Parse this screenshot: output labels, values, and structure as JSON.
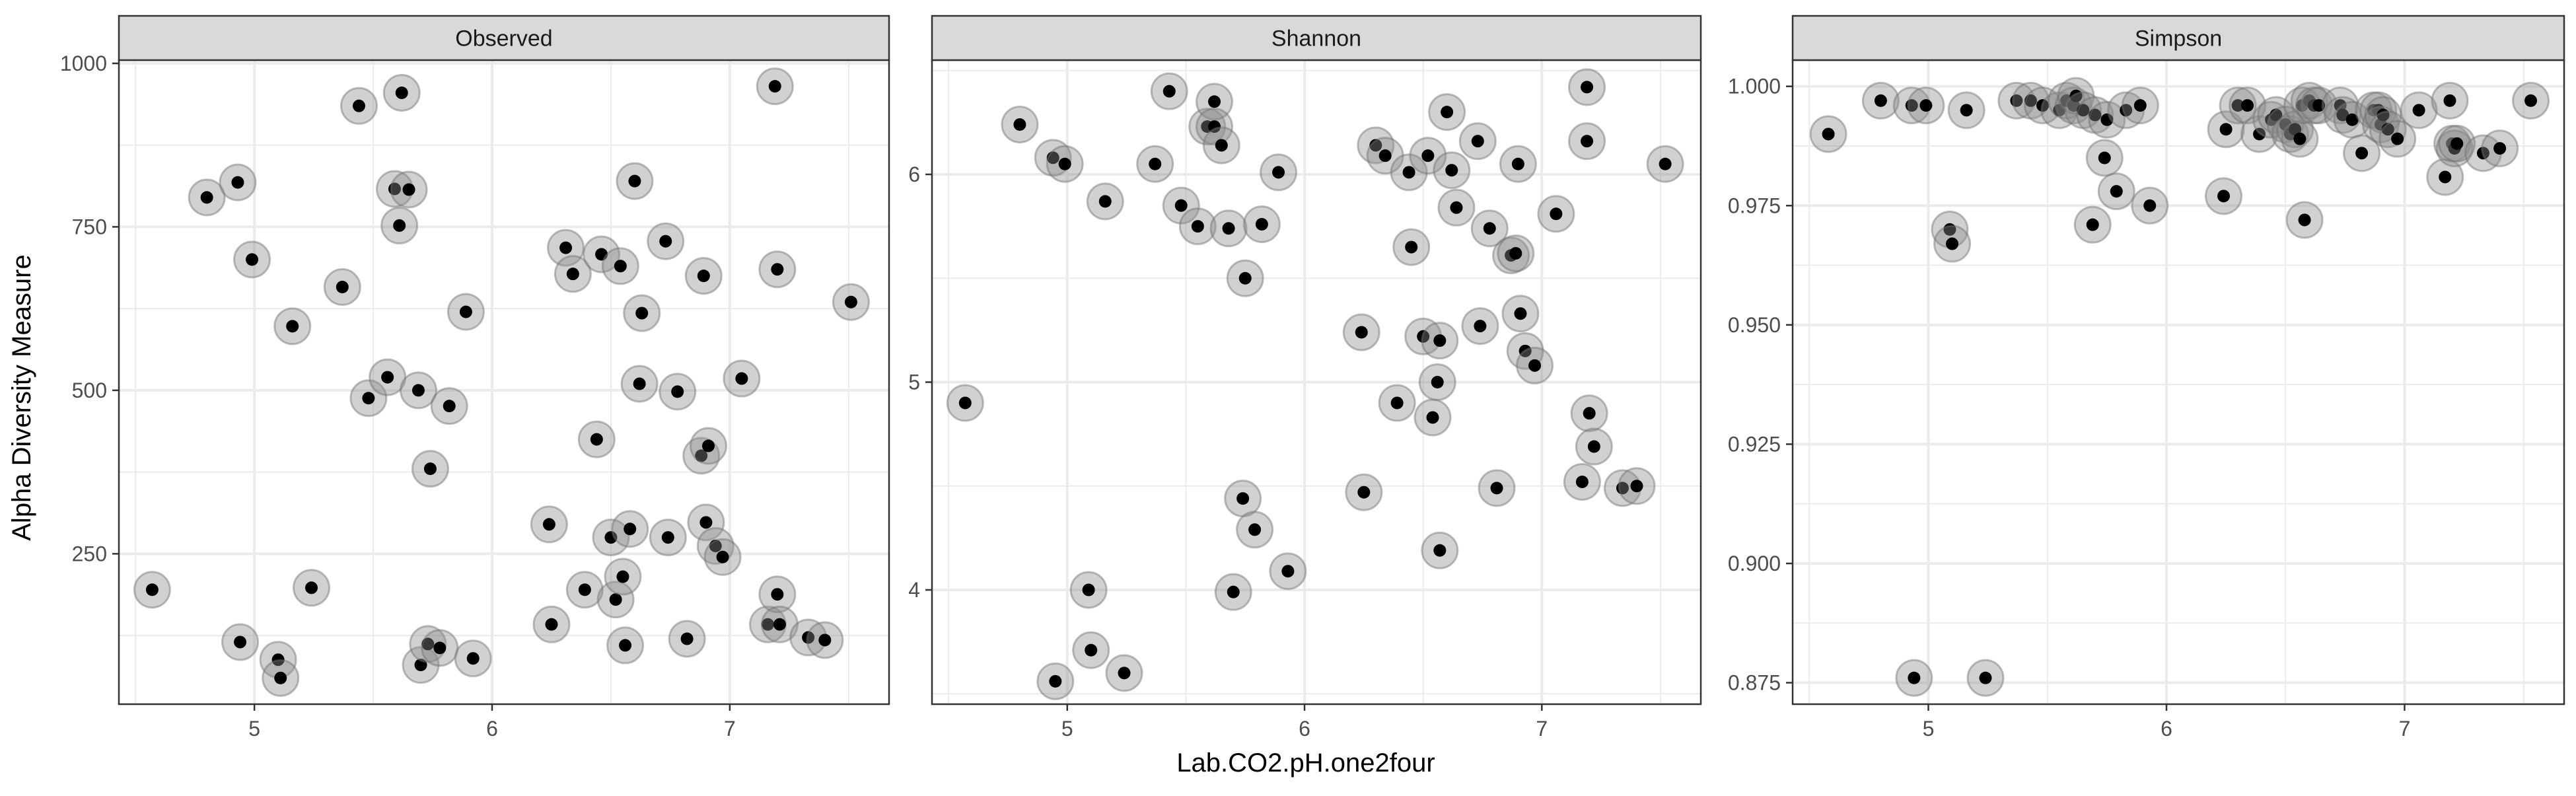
{
  "chart_data": {
    "type": "scatter",
    "ylabel": "Alpha Diversity Measure",
    "xlabel": "Lab.CO2.pH.one2four",
    "grid": true,
    "colors": {
      "point": "#000000",
      "halo": "#8c8c8c",
      "strip_fill": "#d9d9d9",
      "panel_border": "#333333",
      "grid": "#ebebeb"
    },
    "x_ticks": [
      5,
      6,
      7
    ],
    "xlim": [
      4.43,
      7.67
    ],
    "panels": [
      {
        "title": "Observed",
        "ylim": [
          20,
          1005
        ],
        "y_ticks": [
          250,
          500,
          750,
          1000
        ],
        "y_tick_labels": [
          "250",
          "500",
          "750",
          "1000"
        ],
        "points": [
          [
            4.57,
            195
          ],
          [
            4.8,
            795
          ],
          [
            4.93,
            818
          ],
          [
            4.94,
            115
          ],
          [
            4.99,
            700
          ],
          [
            5.1,
            88
          ],
          [
            5.11,
            60
          ],
          [
            5.16,
            598
          ],
          [
            5.24,
            198
          ],
          [
            5.37,
            658
          ],
          [
            5.44,
            935
          ],
          [
            5.48,
            488
          ],
          [
            5.56,
            520
          ],
          [
            5.59,
            808
          ],
          [
            5.61,
            752
          ],
          [
            5.62,
            955
          ],
          [
            5.65,
            807
          ],
          [
            5.69,
            500
          ],
          [
            5.7,
            80
          ],
          [
            5.73,
            112
          ],
          [
            5.74,
            380
          ],
          [
            5.78,
            106
          ],
          [
            5.82,
            476
          ],
          [
            5.89,
            620
          ],
          [
            5.92,
            90
          ],
          [
            6.24,
            295
          ],
          [
            6.25,
            142
          ],
          [
            6.31,
            718
          ],
          [
            6.34,
            678
          ],
          [
            6.39,
            195
          ],
          [
            6.44,
            425
          ],
          [
            6.46,
            708
          ],
          [
            6.5,
            275
          ],
          [
            6.52,
            180
          ],
          [
            6.54,
            690
          ],
          [
            6.55,
            215
          ],
          [
            6.56,
            110
          ],
          [
            6.58,
            288
          ],
          [
            6.6,
            820
          ],
          [
            6.62,
            510
          ],
          [
            6.63,
            618
          ],
          [
            6.73,
            728
          ],
          [
            6.74,
            275
          ],
          [
            6.78,
            498
          ],
          [
            6.82,
            120
          ],
          [
            6.88,
            400
          ],
          [
            6.89,
            675
          ],
          [
            6.9,
            298
          ],
          [
            6.91,
            415
          ],
          [
            6.94,
            262
          ],
          [
            6.97,
            245
          ],
          [
            7.05,
            518
          ],
          [
            7.16,
            142
          ],
          [
            7.19,
            965
          ],
          [
            7.2,
            685
          ],
          [
            7.2,
            188
          ],
          [
            7.21,
            142
          ],
          [
            7.33,
            122
          ],
          [
            7.4,
            118
          ],
          [
            7.51,
            635
          ]
        ]
      },
      {
        "title": "Shannon",
        "ylim": [
          3.45,
          6.55
        ],
        "y_ticks": [
          4,
          5,
          6
        ],
        "y_tick_labels": [
          "4",
          "5",
          "6"
        ],
        "points": [
          [
            4.57,
            4.9
          ],
          [
            4.8,
            6.24
          ],
          [
            4.94,
            6.08
          ],
          [
            4.95,
            3.56
          ],
          [
            4.99,
            6.05
          ],
          [
            5.09,
            4.0
          ],
          [
            5.1,
            3.71
          ],
          [
            5.16,
            5.87
          ],
          [
            5.24,
            3.6
          ],
          [
            5.37,
            6.05
          ],
          [
            5.43,
            6.4
          ],
          [
            5.48,
            5.85
          ],
          [
            5.55,
            5.75
          ],
          [
            5.59,
            6.23
          ],
          [
            5.62,
            6.35
          ],
          [
            5.62,
            6.23
          ],
          [
            5.65,
            6.14
          ],
          [
            5.68,
            5.74
          ],
          [
            5.7,
            3.99
          ],
          [
            5.74,
            4.44
          ],
          [
            5.75,
            5.5
          ],
          [
            5.79,
            4.29
          ],
          [
            5.82,
            5.76
          ],
          [
            5.89,
            6.01
          ],
          [
            5.93,
            4.09
          ],
          [
            6.24,
            5.24
          ],
          [
            6.25,
            4.47
          ],
          [
            6.3,
            6.14
          ],
          [
            6.34,
            6.09
          ],
          [
            6.39,
            4.9
          ],
          [
            6.44,
            6.01
          ],
          [
            6.45,
            5.65
          ],
          [
            6.5,
            5.22
          ],
          [
            6.52,
            6.09
          ],
          [
            6.54,
            4.83
          ],
          [
            6.56,
            5.0
          ],
          [
            6.57,
            4.19
          ],
          [
            6.57,
            5.2
          ],
          [
            6.6,
            6.3
          ],
          [
            6.62,
            6.02
          ],
          [
            6.64,
            5.84
          ],
          [
            6.73,
            6.16
          ],
          [
            6.74,
            5.27
          ],
          [
            6.78,
            5.74
          ],
          [
            6.81,
            4.49
          ],
          [
            6.87,
            5.61
          ],
          [
            6.89,
            5.62
          ],
          [
            6.9,
            6.05
          ],
          [
            6.91,
            5.33
          ],
          [
            6.93,
            5.15
          ],
          [
            6.97,
            5.08
          ],
          [
            7.06,
            5.81
          ],
          [
            7.17,
            4.52
          ],
          [
            7.19,
            6.42
          ],
          [
            7.19,
            6.16
          ],
          [
            7.2,
            4.85
          ],
          [
            7.22,
            4.69
          ],
          [
            7.34,
            4.49
          ],
          [
            7.4,
            4.5
          ],
          [
            7.52,
            6.05
          ]
        ]
      },
      {
        "title": "Simpson",
        "ylim": [
          0.8705,
          1.0055
        ],
        "y_ticks": [
          0.875,
          0.9,
          0.925,
          0.95,
          0.975,
          1.0
        ],
        "y_tick_labels": [
          "0.875",
          "0.900",
          "0.925",
          "0.950",
          "0.975",
          "1.000"
        ],
        "points": [
          [
            4.58,
            0.99
          ],
          [
            4.8,
            0.997
          ],
          [
            4.93,
            0.996
          ],
          [
            4.94,
            0.876
          ],
          [
            4.99,
            0.996
          ],
          [
            5.09,
            0.97
          ],
          [
            5.1,
            0.967
          ],
          [
            5.16,
            0.995
          ],
          [
            5.24,
            0.876
          ],
          [
            5.37,
            0.997
          ],
          [
            5.43,
            0.997
          ],
          [
            5.48,
            0.996
          ],
          [
            5.55,
            0.995
          ],
          [
            5.58,
            0.997
          ],
          [
            5.61,
            0.996
          ],
          [
            5.62,
            0.998
          ],
          [
            5.65,
            0.995
          ],
          [
            5.69,
            0.971
          ],
          [
            5.7,
            0.994
          ],
          [
            5.74,
            0.985
          ],
          [
            5.75,
            0.993
          ],
          [
            5.79,
            0.978
          ],
          [
            5.83,
            0.995
          ],
          [
            5.89,
            0.996
          ],
          [
            5.93,
            0.975
          ],
          [
            6.24,
            0.977
          ],
          [
            6.25,
            0.991
          ],
          [
            6.3,
            0.996
          ],
          [
            6.34,
            0.996
          ],
          [
            6.39,
            0.99
          ],
          [
            6.44,
            0.993
          ],
          [
            6.46,
            0.994
          ],
          [
            6.5,
            0.992
          ],
          [
            6.52,
            0.99
          ],
          [
            6.54,
            0.991
          ],
          [
            6.56,
            0.989
          ],
          [
            6.57,
            0.996
          ],
          [
            6.58,
            0.972
          ],
          [
            6.6,
            0.997
          ],
          [
            6.62,
            0.996
          ],
          [
            6.64,
            0.996
          ],
          [
            6.73,
            0.996
          ],
          [
            6.74,
            0.994
          ],
          [
            6.78,
            0.993
          ],
          [
            6.82,
            0.986
          ],
          [
            6.87,
            0.995
          ],
          [
            6.89,
            0.995
          ],
          [
            6.9,
            0.992
          ],
          [
            6.91,
            0.994
          ],
          [
            6.93,
            0.991
          ],
          [
            6.97,
            0.989
          ],
          [
            7.06,
            0.995
          ],
          [
            7.17,
            0.981
          ],
          [
            7.19,
            0.997
          ],
          [
            7.2,
            0.988
          ],
          [
            7.21,
            0.987
          ],
          [
            7.22,
            0.988
          ],
          [
            7.33,
            0.986
          ],
          [
            7.4,
            0.987
          ],
          [
            7.53,
            0.997
          ]
        ]
      }
    ]
  }
}
